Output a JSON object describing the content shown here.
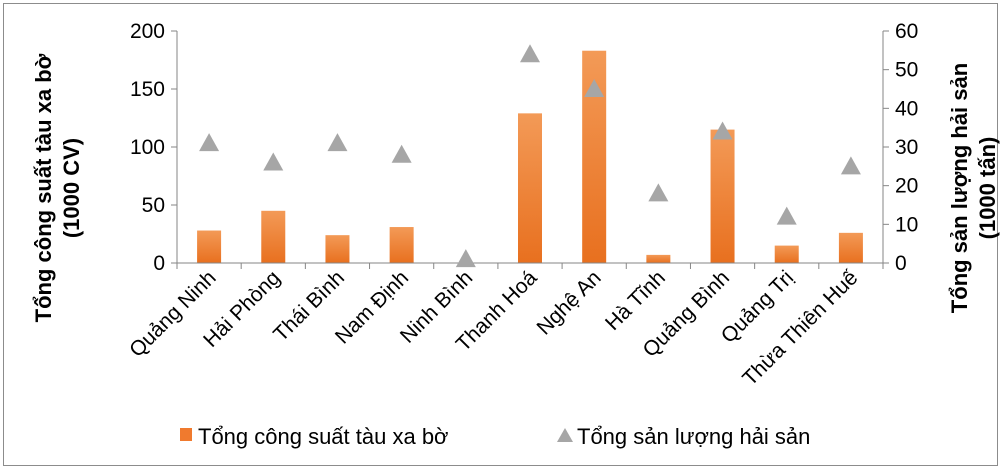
{
  "chart_data": {
    "type": "bar",
    "categories": [
      "Quảng Ninh",
      "Hải Phòng",
      "Thái Bình",
      "Nam Định",
      "Ninh Bình",
      "Thanh Hoá",
      "Nghệ An",
      "Hà Tĩnh",
      "Quảng Bình",
      "Quảng Trị",
      "Thừa Thiên Huế"
    ],
    "series": [
      {
        "name": "Tổng công suất tàu xa bờ",
        "type": "bar",
        "axis": "left",
        "color": "#f07a2e",
        "values": [
          28,
          45,
          24,
          31,
          0,
          129,
          183,
          7,
          115,
          15,
          26
        ]
      },
      {
        "name": "Tổng sản lượng hải sản",
        "type": "scatter",
        "marker": "triangle",
        "axis": "right",
        "color": "#a6a6a6",
        "values": [
          31,
          26,
          31,
          28,
          1,
          54,
          45,
          18,
          34,
          12,
          25
        ]
      }
    ],
    "ylabel_left_line1": "Tổng công suất tàu xa bờ",
    "ylabel_left_line2": "(1000 CV)",
    "ylabel_right_line1": "Tổng sản lượng hải sản",
    "ylabel_right_line2": "(1000 tấn)",
    "ylim_left": [
      0,
      200
    ],
    "yticks_left": [
      "0",
      "50",
      "100",
      "150",
      "200"
    ],
    "ylim_right": [
      0,
      60
    ],
    "yticks_right": [
      "0",
      "10",
      "20",
      "30",
      "40",
      "50",
      "60"
    ],
    "legend_position": "bottom",
    "grid": false
  }
}
